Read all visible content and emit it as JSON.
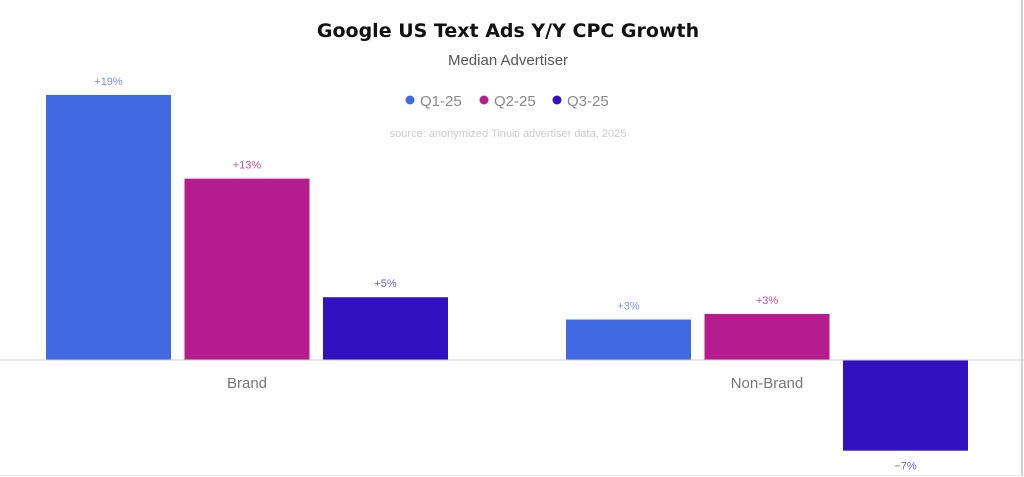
{
  "chart_data": {
    "type": "bar",
    "title": "Google US Text Ads Y/Y CPC Growth",
    "subtitle": "Median Advertiser",
    "source": "source: anonymized Tinuiti advertiser data, 2025",
    "categories": [
      "Brand",
      "Non-Brand"
    ],
    "series": [
      {
        "name": "Q1-25",
        "color": "#4169E1",
        "label_color": "#7b93e8",
        "values": [
          19,
          2.9
        ],
        "labels": [
          "+19%",
          "+3%"
        ]
      },
      {
        "name": "Q2-25",
        "color": "#B51C8E",
        "label_color": "#c4539f",
        "values": [
          13,
          3.3
        ],
        "labels": [
          "+13%",
          "+3%"
        ]
      },
      {
        "name": "Q3-25",
        "color": "#3112C0",
        "label_color": "#6f5fbf",
        "values": [
          4.5,
          -6.5
        ],
        "labels": [
          "+5%",
          "−7%"
        ]
      }
    ],
    "ylim": [
      -7.5,
      21
    ],
    "legend_position": "top-center",
    "grid": false,
    "xlabel": "",
    "ylabel": ""
  }
}
